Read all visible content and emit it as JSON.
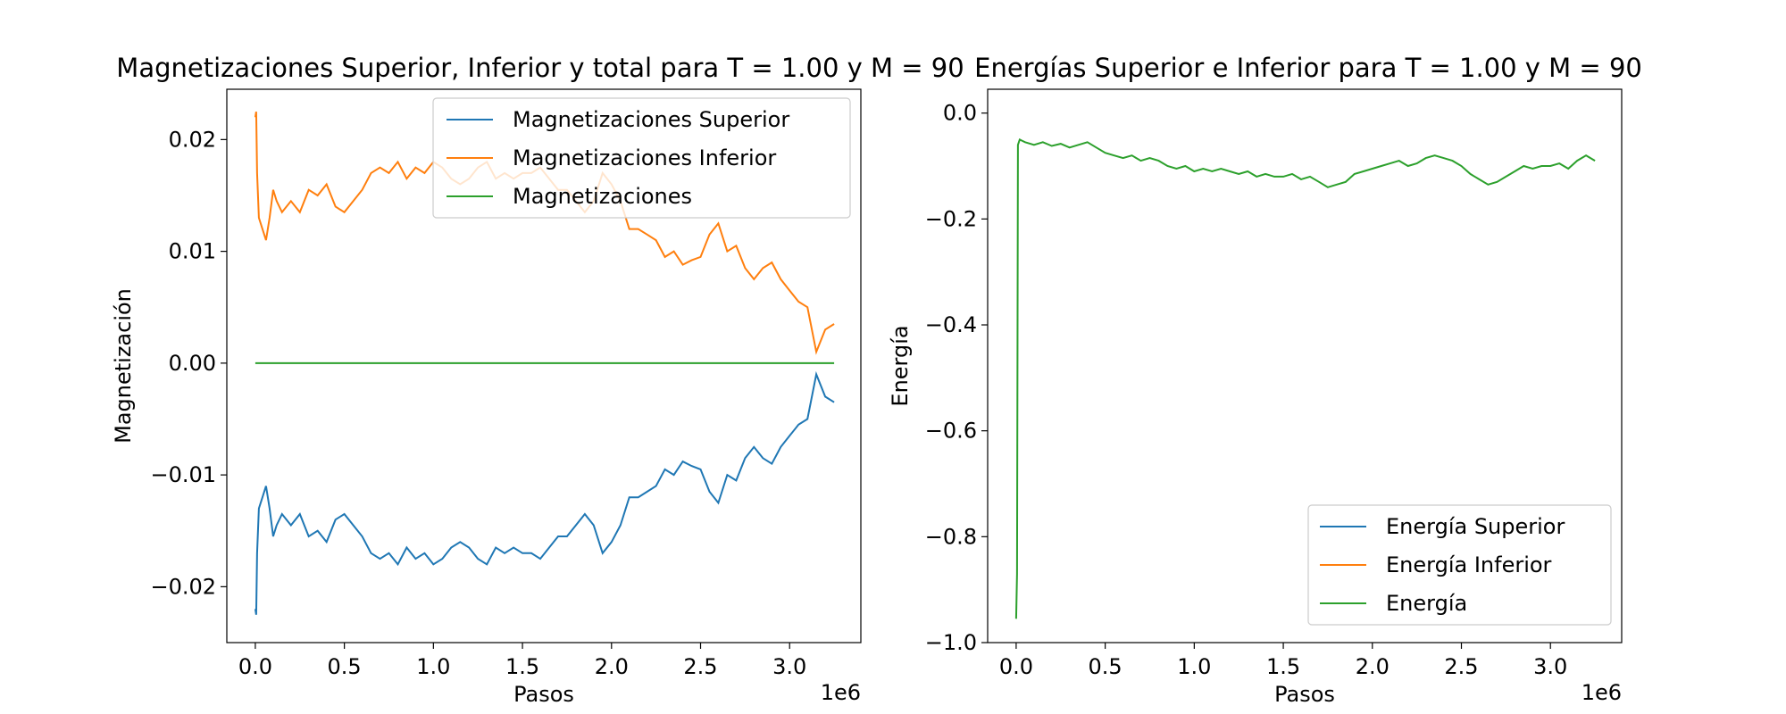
{
  "chart_data": [
    {
      "type": "line",
      "title": "Magnetizaciones Superior, Inferior y total para T = 1.00 y M = 90",
      "xlabel": "Pasos",
      "ylabel": "Magnetización",
      "x_offset_label": "1e6",
      "xlim": [
        -0.16,
        3.4
      ],
      "ylim": [
        -0.025,
        0.0245
      ],
      "xticks": [
        0.0,
        0.5,
        1.0,
        1.5,
        2.0,
        2.5,
        3.0
      ],
      "xtick_labels": [
        "0.0",
        "0.5",
        "1.0",
        "1.5",
        "2.0",
        "2.5",
        "3.0"
      ],
      "yticks": [
        -0.02,
        -0.01,
        0.0,
        0.01,
        0.02
      ],
      "ytick_labels": [
        "−0.02",
        "−0.01",
        "0.00",
        "0.01",
        "0.02"
      ],
      "legend_position": "upper right",
      "grid": false,
      "series": [
        {
          "name": "Magnetizaciones Superior",
          "color": "#1f77b4",
          "x": [
            0.0,
            0.005,
            0.01,
            0.02,
            0.04,
            0.06,
            0.08,
            0.1,
            0.12,
            0.15,
            0.2,
            0.25,
            0.3,
            0.35,
            0.4,
            0.45,
            0.5,
            0.55,
            0.6,
            0.65,
            0.7,
            0.75,
            0.8,
            0.85,
            0.9,
            0.95,
            1.0,
            1.05,
            1.1,
            1.15,
            1.2,
            1.25,
            1.3,
            1.35,
            1.4,
            1.45,
            1.5,
            1.55,
            1.6,
            1.65,
            1.7,
            1.75,
            1.8,
            1.85,
            1.9,
            1.95,
            2.0,
            2.05,
            2.1,
            2.15,
            2.2,
            2.25,
            2.3,
            2.35,
            2.4,
            2.45,
            2.5,
            2.55,
            2.6,
            2.65,
            2.7,
            2.75,
            2.8,
            2.85,
            2.9,
            2.95,
            3.0,
            3.05,
            3.1,
            3.15,
            3.2,
            3.25
          ],
          "y": [
            -0.022,
            -0.0225,
            -0.017,
            -0.013,
            -0.012,
            -0.011,
            -0.013,
            -0.0155,
            -0.0145,
            -0.0135,
            -0.0145,
            -0.0135,
            -0.0155,
            -0.015,
            -0.016,
            -0.014,
            -0.0135,
            -0.0145,
            -0.0155,
            -0.017,
            -0.0175,
            -0.017,
            -0.018,
            -0.0165,
            -0.0175,
            -0.017,
            -0.018,
            -0.0175,
            -0.0165,
            -0.016,
            -0.0165,
            -0.0175,
            -0.018,
            -0.0165,
            -0.017,
            -0.0165,
            -0.017,
            -0.017,
            -0.0175,
            -0.0165,
            -0.0155,
            -0.0155,
            -0.0145,
            -0.0135,
            -0.0145,
            -0.017,
            -0.016,
            -0.0145,
            -0.012,
            -0.012,
            -0.0115,
            -0.011,
            -0.0095,
            -0.01,
            -0.0088,
            -0.0092,
            -0.0095,
            -0.0115,
            -0.0125,
            -0.01,
            -0.0105,
            -0.0085,
            -0.0075,
            -0.0085,
            -0.009,
            -0.0075,
            -0.0065,
            -0.0055,
            -0.005,
            -0.001,
            -0.003,
            -0.0035
          ]
        },
        {
          "name": "Magnetizaciones Inferior",
          "color": "#ff7f0e",
          "x": [
            0.0,
            0.005,
            0.01,
            0.02,
            0.04,
            0.06,
            0.08,
            0.1,
            0.12,
            0.15,
            0.2,
            0.25,
            0.3,
            0.35,
            0.4,
            0.45,
            0.5,
            0.55,
            0.6,
            0.65,
            0.7,
            0.75,
            0.8,
            0.85,
            0.9,
            0.95,
            1.0,
            1.05,
            1.1,
            1.15,
            1.2,
            1.25,
            1.3,
            1.35,
            1.4,
            1.45,
            1.5,
            1.55,
            1.6,
            1.65,
            1.7,
            1.75,
            1.8,
            1.85,
            1.9,
            1.95,
            2.0,
            2.05,
            2.1,
            2.15,
            2.2,
            2.25,
            2.3,
            2.35,
            2.4,
            2.45,
            2.5,
            2.55,
            2.6,
            2.65,
            2.7,
            2.75,
            2.8,
            2.85,
            2.9,
            2.95,
            3.0,
            3.05,
            3.1,
            3.15,
            3.2,
            3.25
          ],
          "y": [
            0.022,
            0.0225,
            0.017,
            0.013,
            0.012,
            0.011,
            0.013,
            0.0155,
            0.0145,
            0.0135,
            0.0145,
            0.0135,
            0.0155,
            0.015,
            0.016,
            0.014,
            0.0135,
            0.0145,
            0.0155,
            0.017,
            0.0175,
            0.017,
            0.018,
            0.0165,
            0.0175,
            0.017,
            0.018,
            0.0175,
            0.0165,
            0.016,
            0.0165,
            0.0175,
            0.018,
            0.0165,
            0.017,
            0.0165,
            0.017,
            0.017,
            0.0175,
            0.0165,
            0.0155,
            0.0155,
            0.0145,
            0.0135,
            0.0145,
            0.017,
            0.016,
            0.0145,
            0.012,
            0.012,
            0.0115,
            0.011,
            0.0095,
            0.01,
            0.0088,
            0.0092,
            0.0095,
            0.0115,
            0.0125,
            0.01,
            0.0105,
            0.0085,
            0.0075,
            0.0085,
            0.009,
            0.0075,
            0.0065,
            0.0055,
            0.005,
            0.001,
            0.003,
            0.0035
          ]
        },
        {
          "name": "Magnetizaciones",
          "color": "#2ca02c",
          "x": [
            0.0,
            3.25
          ],
          "y": [
            0.0,
            0.0
          ]
        }
      ]
    },
    {
      "type": "line",
      "title": "Energías Superior e Inferior para T = 1.00 y M = 90",
      "xlabel": "Pasos",
      "ylabel": "Energía",
      "x_offset_label": "1e6",
      "xlim": [
        -0.16,
        3.4
      ],
      "ylim": [
        -1.0,
        0.045
      ],
      "xticks": [
        0.0,
        0.5,
        1.0,
        1.5,
        2.0,
        2.5,
        3.0
      ],
      "xtick_labels": [
        "0.0",
        "0.5",
        "1.0",
        "1.5",
        "2.0",
        "2.5",
        "3.0"
      ],
      "yticks": [
        -1.0,
        -0.8,
        -0.6,
        -0.4,
        -0.2,
        0.0
      ],
      "ytick_labels": [
        "−1.0",
        "−0.8",
        "−0.6",
        "−0.4",
        "−0.2",
        "0.0"
      ],
      "legend_position": "lower right",
      "grid": false,
      "series": [
        {
          "name": "Energía Superior",
          "color": "#1f77b4",
          "x": [],
          "y": []
        },
        {
          "name": "Energía Inferior",
          "color": "#ff7f0e",
          "x": [],
          "y": []
        },
        {
          "name": "Energía",
          "color": "#2ca02c",
          "x": [
            0.0,
            0.005,
            0.01,
            0.02,
            0.05,
            0.1,
            0.15,
            0.2,
            0.25,
            0.3,
            0.35,
            0.4,
            0.45,
            0.5,
            0.55,
            0.6,
            0.65,
            0.7,
            0.75,
            0.8,
            0.85,
            0.9,
            0.95,
            1.0,
            1.05,
            1.1,
            1.15,
            1.2,
            1.25,
            1.3,
            1.35,
            1.4,
            1.45,
            1.5,
            1.55,
            1.6,
            1.65,
            1.7,
            1.75,
            1.8,
            1.85,
            1.9,
            1.95,
            2.0,
            2.05,
            2.1,
            2.15,
            2.2,
            2.25,
            2.3,
            2.35,
            2.4,
            2.45,
            2.5,
            2.55,
            2.6,
            2.65,
            2.7,
            2.75,
            2.8,
            2.85,
            2.9,
            2.95,
            3.0,
            3.05,
            3.1,
            3.15,
            3.2,
            3.25
          ],
          "y": [
            -0.955,
            -0.87,
            -0.06,
            -0.05,
            -0.055,
            -0.06,
            -0.055,
            -0.062,
            -0.058,
            -0.065,
            -0.06,
            -0.055,
            -0.065,
            -0.075,
            -0.08,
            -0.085,
            -0.08,
            -0.09,
            -0.085,
            -0.09,
            -0.1,
            -0.105,
            -0.1,
            -0.11,
            -0.105,
            -0.11,
            -0.105,
            -0.11,
            -0.115,
            -0.11,
            -0.12,
            -0.115,
            -0.12,
            -0.12,
            -0.115,
            -0.125,
            -0.12,
            -0.13,
            -0.14,
            -0.135,
            -0.13,
            -0.115,
            -0.11,
            -0.105,
            -0.1,
            -0.095,
            -0.09,
            -0.1,
            -0.095,
            -0.085,
            -0.08,
            -0.085,
            -0.09,
            -0.1,
            -0.115,
            -0.125,
            -0.135,
            -0.13,
            -0.12,
            -0.11,
            -0.1,
            -0.105,
            -0.1,
            -0.1,
            -0.095,
            -0.105,
            -0.09,
            -0.08,
            -0.09
          ]
        }
      ]
    }
  ]
}
